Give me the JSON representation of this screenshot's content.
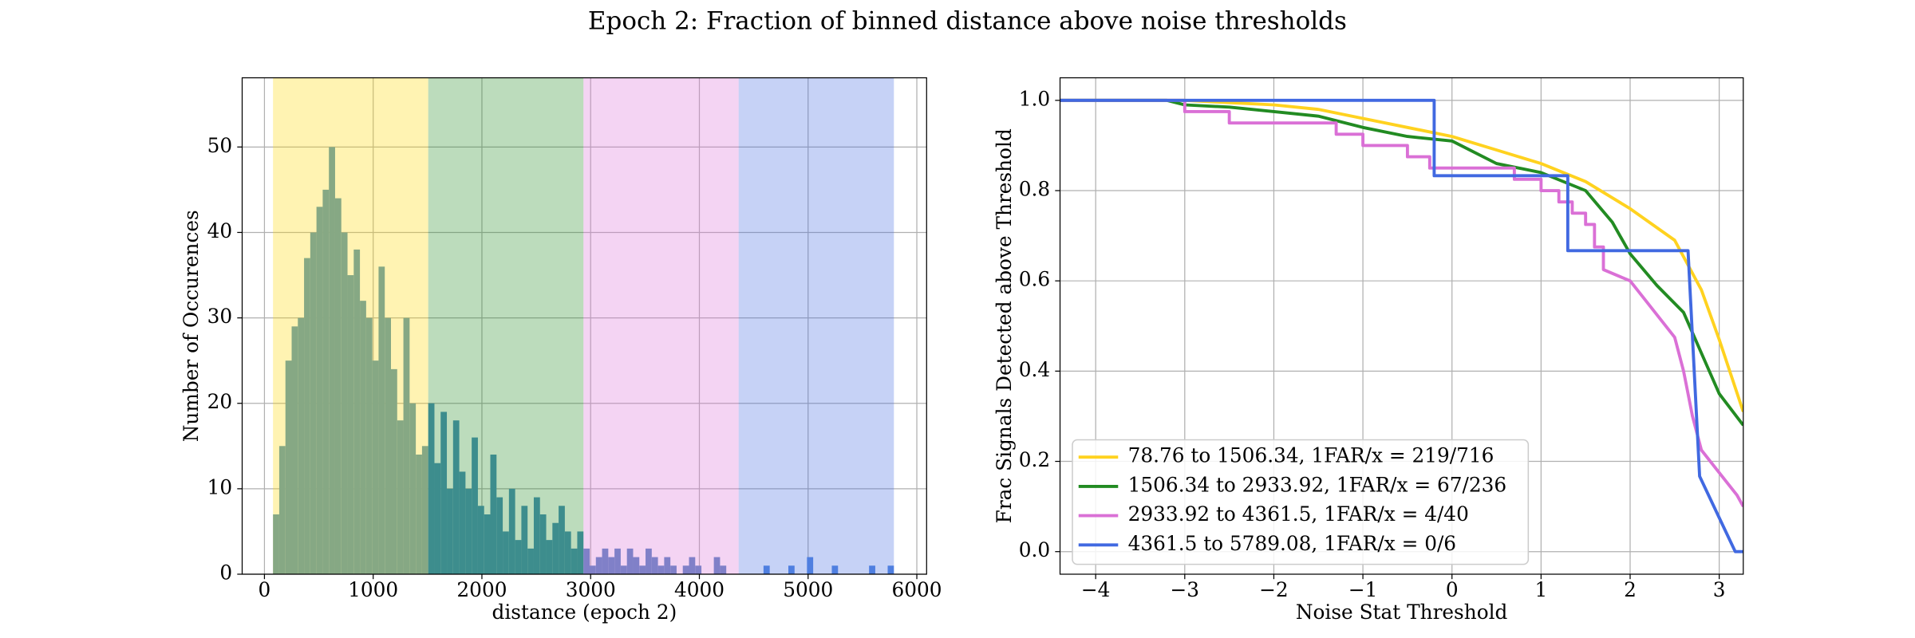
{
  "title": "Epoch 2: Fraction of binned distance above noise thresholds",
  "chart_data": [
    {
      "type": "histogram",
      "xlabel": "distance (epoch 2)",
      "ylabel": "Number of Occurences",
      "bins": [
        78.76,
        135.86,
        192.97,
        250.07,
        307.17,
        364.28,
        421.38,
        478.48,
        535.59,
        592.69,
        649.79,
        706.9,
        764.0,
        821.1,
        878.2,
        935.31,
        992.41,
        1049.51,
        1106.62,
        1163.72,
        1220.82,
        1277.93,
        1335.03,
        1392.13,
        1449.24,
        1506.34,
        1563.44,
        1620.55,
        1677.65,
        1734.75,
        1791.86,
        1848.96,
        1906.06,
        1963.17,
        2020.27,
        2077.37,
        2134.48,
        2191.58,
        2248.68,
        2305.78,
        2362.89,
        2419.99,
        2477.09,
        2534.2,
        2591.3,
        2648.4,
        2705.51,
        2762.61,
        2819.71,
        2876.82,
        2933.92,
        2991.02,
        3048.13,
        3105.23,
        3162.33,
        3219.44,
        3276.54,
        3333.64,
        3390.75,
        3447.85,
        3504.95,
        3562.06,
        3619.16,
        3676.26,
        3733.36,
        3790.47,
        3847.57,
        3904.67,
        3961.78,
        4018.88,
        4075.98,
        4133.09,
        4190.19,
        4247.29,
        4304.4,
        4361.5,
        4418.6,
        4475.71,
        4532.81,
        4589.91,
        4647.02,
        4704.12,
        4761.22,
        4818.33,
        4875.43,
        4932.53,
        4989.64,
        5046.74,
        5103.84,
        5160.94,
        5218.05,
        5275.15,
        5332.25,
        5389.36,
        5446.46,
        5503.56,
        5560.67,
        5617.77,
        5674.87,
        5731.98,
        5789.08
      ],
      "values": [
        7,
        15,
        25,
        29,
        30,
        37,
        40,
        43,
        45,
        50,
        44,
        40,
        35,
        38,
        32,
        30,
        25,
        36,
        30,
        24,
        18,
        30,
        20,
        14,
        15,
        20,
        13,
        19,
        10,
        18,
        12,
        10,
        16,
        8,
        7,
        14,
        9,
        5,
        10,
        4,
        8,
        3,
        9,
        7,
        4,
        6,
        8,
        5,
        3,
        5,
        3,
        1,
        2,
        3,
        2,
        3,
        1,
        3,
        2,
        1,
        3,
        2,
        1,
        2,
        1,
        0,
        1,
        2,
        1,
        0,
        0,
        2,
        1,
        0,
        0,
        0,
        0,
        0,
        0,
        1,
        0,
        0,
        0,
        1,
        0,
        0,
        2,
        0,
        0,
        0,
        1,
        0,
        0,
        0,
        0,
        0,
        1,
        0,
        0,
        1
      ],
      "regions": [
        {
          "start": 78.76,
          "end": 1506.34,
          "color": "#ffd700",
          "bar_color": "#86a884"
        },
        {
          "start": 1506.34,
          "end": 2933.92,
          "color": "#228b22",
          "bar_color": "#3d8d8d"
        },
        {
          "start": 2933.92,
          "end": 4361.5,
          "color": "#da70d6",
          "bar_color": "#8080c8"
        },
        {
          "start": 4361.5,
          "end": 5789.08,
          "color": "#4169e1",
          "bar_color": "#4f7fe0"
        }
      ],
      "xlim": [
        -205,
        6090
      ],
      "ylim": [
        0,
        58.1
      ],
      "xticks": [
        0,
        1000,
        2000,
        3000,
        4000,
        5000,
        6000
      ],
      "yticks": [
        0,
        10,
        20,
        30,
        40,
        50
      ],
      "grid": true
    },
    {
      "type": "line",
      "xlabel": "Noise Stat Threshold",
      "ylabel": "Frac Signals Detected above Threshold",
      "xlim": [
        -4.4,
        3.27
      ],
      "ylim": [
        -0.05,
        1.05
      ],
      "xticks": [
        {
          "value": -4,
          "label": "−4"
        },
        {
          "value": -3,
          "label": "−3"
        },
        {
          "value": -2,
          "label": "−2"
        },
        {
          "value": -1,
          "label": "−1"
        },
        0,
        1,
        2,
        3
      ],
      "yticks": [
        {
          "value": 0,
          "label": "0.0"
        },
        0.2,
        0.4,
        0.6,
        0.8,
        {
          "value": 1,
          "label": "1.0"
        }
      ],
      "grid": true,
      "legend": "lower left",
      "series": [
        {
          "name": "78.76 to 1506.34, 1FAR/x = 219/716",
          "color": "#ffd21f",
          "x": [
            -4.4,
            -3,
            -2.5,
            -2,
            -1.5,
            -1,
            -0.5,
            0,
            0.5,
            1,
            1.5,
            2,
            2.5,
            2.8,
            3.0,
            3.27
          ],
          "values": [
            1.0,
            1.0,
            0.995,
            0.99,
            0.98,
            0.96,
            0.94,
            0.92,
            0.89,
            0.86,
            0.82,
            0.76,
            0.69,
            0.58,
            0.47,
            0.31
          ]
        },
        {
          "name": "1506.34 to 2933.92, 1FAR/x = 67/236",
          "color": "#228b22",
          "x": [
            -4.4,
            -3.2,
            -3,
            -2.5,
            -2,
            -1.5,
            -1,
            -0.5,
            0,
            0.5,
            1,
            1.5,
            1.8,
            2,
            2.3,
            2.6,
            2.8,
            3.0,
            3.27
          ],
          "values": [
            1.0,
            1.0,
            0.99,
            0.985,
            0.975,
            0.965,
            0.94,
            0.92,
            0.91,
            0.86,
            0.84,
            0.8,
            0.73,
            0.66,
            0.59,
            0.53,
            0.44,
            0.35,
            0.28
          ]
        },
        {
          "name": "2933.92 to 4361.5, 1FAR/x = 4/40",
          "color": "#da70d6",
          "x": [
            -4.4,
            -3,
            -3,
            -2.5,
            -2.5,
            -1.3,
            -1.3,
            -1,
            -1,
            -0.5,
            -0.5,
            -0.25,
            -0.25,
            0.7,
            0.7,
            1.0,
            1.0,
            1.2,
            1.2,
            1.35,
            1.35,
            1.5,
            1.5,
            1.6,
            1.6,
            1.7,
            1.7,
            2.0,
            2.2,
            2.5,
            2.6,
            2.7,
            2.8,
            3.0,
            3.2,
            3.27
          ],
          "values": [
            1.0,
            1.0,
            0.975,
            0.975,
            0.95,
            0.95,
            0.925,
            0.925,
            0.9,
            0.9,
            0.875,
            0.875,
            0.85,
            0.85,
            0.825,
            0.825,
            0.8,
            0.8,
            0.775,
            0.775,
            0.75,
            0.75,
            0.725,
            0.725,
            0.675,
            0.675,
            0.625,
            0.6,
            0.55,
            0.475,
            0.4,
            0.3,
            0.225,
            0.175,
            0.125,
            0.1
          ]
        },
        {
          "name": "4361.5 to 5789.08, 1FAR/x = 0/6",
          "color": "#4169e1",
          "x": [
            -4.4,
            -0.2,
            -0.2,
            1.3,
            1.3,
            2.65,
            2.78,
            3.18,
            3.27
          ],
          "values": [
            1.0,
            1.0,
            0.833,
            0.833,
            0.667,
            0.667,
            0.167,
            0,
            0
          ]
        }
      ]
    }
  ]
}
